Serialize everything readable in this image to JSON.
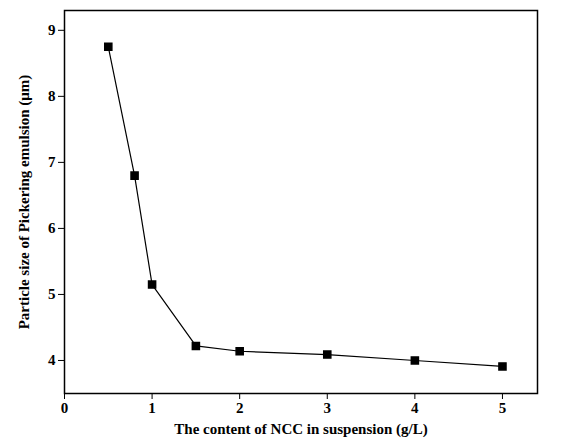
{
  "chart_data": {
    "type": "line",
    "x_label": "The content of NCC in suspension (g/L)",
    "y_label": "Particle size of Pickering emulsion (μm)",
    "x": [
      0.5,
      0.8,
      1,
      1.5,
      2,
      3,
      4,
      5
    ],
    "values": [
      8.75,
      6.8,
      5.15,
      4.22,
      4.14,
      4.09,
      4.0,
      3.91
    ],
    "color": "#000000",
    "marker": "square",
    "line_style": "solid",
    "xlim": [
      0,
      5.4
    ],
    "xticks": [
      0,
      1,
      2,
      3,
      4,
      5
    ],
    "ylim": [
      3.5,
      9.3
    ],
    "yticks": [
      4,
      5,
      6,
      7,
      8,
      9
    ],
    "grid": false
  }
}
